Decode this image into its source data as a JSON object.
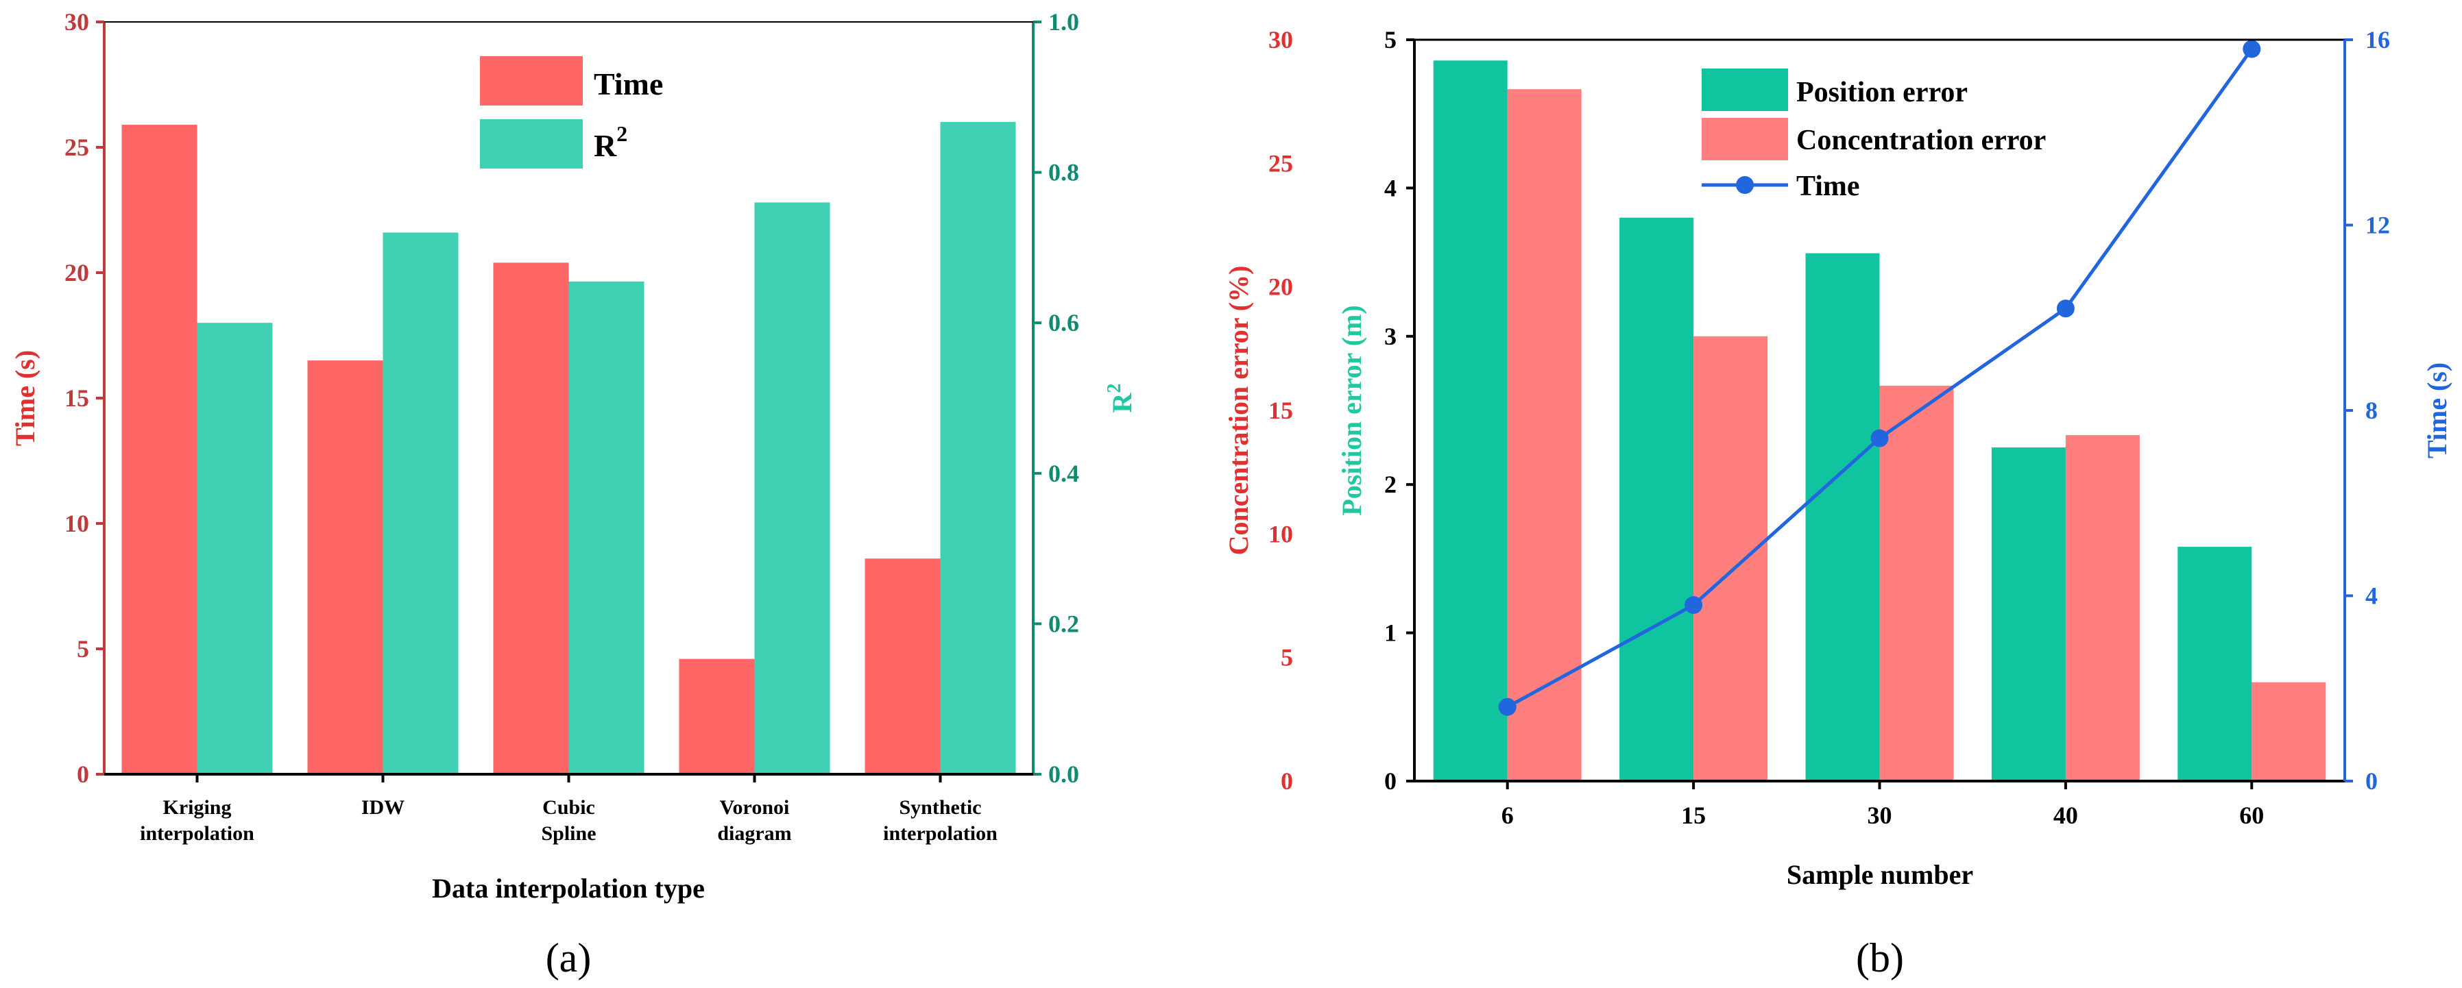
{
  "colors": {
    "time_red": "#FF6666",
    "r2_teal": "#40D0B4",
    "pos_teal": "#10C4A0",
    "conc_pink": "#FF7F7F",
    "time_blue": "#2266DD",
    "axis_red": "#C0393B",
    "axis_red_text": "#E03030",
    "axis_teal": "#108A70",
    "axis_teal_text": "#20C8A0"
  },
  "chart_data": [
    {
      "type": "bar",
      "panel_label": "(a)",
      "categories": [
        [
          "Kriging",
          "interpolation"
        ],
        [
          "IDW"
        ],
        [
          "Cubic",
          "Spline"
        ],
        [
          "Voronoi",
          "diagram"
        ],
        [
          "Synthetic",
          "interpolation"
        ]
      ],
      "series": [
        {
          "name": "Time",
          "axis": "left",
          "values": [
            25.9,
            16.5,
            20.4,
            4.6,
            8.6
          ]
        },
        {
          "name": "R",
          "name_sup": "2",
          "axis": "right",
          "values": [
            0.6,
            0.72,
            0.655,
            0.76,
            0.867
          ]
        }
      ],
      "xlabel": "Data interpolation type",
      "ylabel_left": "Time (s)",
      "ylabel_right": "R",
      "ylabel_right_sup": "2",
      "ylim_left": [
        0,
        30
      ],
      "yticks_left": [
        0,
        5,
        10,
        15,
        20,
        25,
        30
      ],
      "ylim_right": [
        0,
        1.0
      ],
      "yticks_right": [
        "0.0",
        "0.2",
        "0.4",
        "0.6",
        "0.8",
        "1.0"
      ],
      "legend_position": "top-center"
    },
    {
      "type": "bar+line",
      "panel_label": "(b)",
      "categories": [
        "6",
        "15",
        "30",
        "40",
        "60"
      ],
      "series": [
        {
          "name": "Position error",
          "kind": "bar",
          "axis": "position",
          "values": [
            4.86,
            3.8,
            3.56,
            2.25,
            1.58
          ]
        },
        {
          "name": "Concentration error",
          "kind": "bar",
          "axis": "concentration",
          "values": [
            28.0,
            18.0,
            16.0,
            14.0,
            4.0
          ]
        },
        {
          "name": "Time",
          "kind": "line",
          "axis": "time",
          "values": [
            1.6,
            3.8,
            7.4,
            10.2,
            15.8
          ]
        }
      ],
      "xlabel": "Sample number",
      "ylabel_concentration": "Concentration error (%)",
      "ylabel_position": "Position error (m)",
      "ylabel_time": "Time (s)",
      "ylim_concentration": [
        0,
        30
      ],
      "yticks_concentration": [
        0,
        5,
        10,
        15,
        20,
        25,
        30
      ],
      "ylim_position": [
        0,
        5
      ],
      "yticks_position": [
        0,
        1,
        2,
        3,
        4,
        5
      ],
      "ylim_time": [
        0,
        16
      ],
      "yticks_time": [
        0,
        4,
        8,
        12,
        16
      ],
      "legend_position": "top-center"
    }
  ]
}
